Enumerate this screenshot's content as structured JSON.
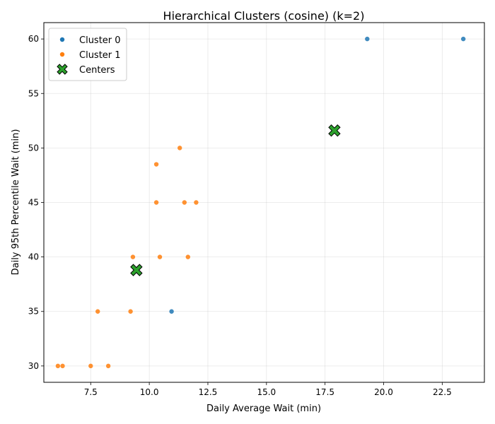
{
  "chart_data": {
    "type": "scatter",
    "title": "Hierarchical Clusters (cosine) (k=2)",
    "xlabel": "Daily Average Wait (min)",
    "ylabel": "Daily 95th Percentile Wait (min)",
    "xlim": [
      5.5,
      24.3
    ],
    "ylim": [
      28.5,
      61.5
    ],
    "xticks": [
      7.5,
      10.0,
      12.5,
      15.0,
      17.5,
      20.0,
      22.5
    ],
    "xtick_labels": [
      "7.5",
      "10.0",
      "12.5",
      "15.0",
      "17.5",
      "20.0",
      "22.5"
    ],
    "yticks": [
      30,
      35,
      40,
      45,
      50,
      55,
      60
    ],
    "ytick_labels": [
      "30",
      "35",
      "40",
      "45",
      "50",
      "55",
      "60"
    ],
    "grid": true,
    "legend_position": "top-left",
    "series": [
      {
        "name": "Cluster 0",
        "color": "#1f77b4",
        "points": [
          {
            "x": 19.3,
            "y": 60
          },
          {
            "x": 23.4,
            "y": 60
          },
          {
            "x": 10.95,
            "y": 35
          }
        ]
      },
      {
        "name": "Cluster 1",
        "color": "#ff7f0e",
        "points": [
          {
            "x": 11.3,
            "y": 50
          },
          {
            "x": 10.3,
            "y": 48.5
          },
          {
            "x": 10.3,
            "y": 45
          },
          {
            "x": 11.5,
            "y": 45
          },
          {
            "x": 12.0,
            "y": 45
          },
          {
            "x": 9.3,
            "y": 40
          },
          {
            "x": 10.45,
            "y": 40
          },
          {
            "x": 11.65,
            "y": 40
          },
          {
            "x": 7.8,
            "y": 35
          },
          {
            "x": 9.2,
            "y": 35
          },
          {
            "x": 6.1,
            "y": 30
          },
          {
            "x": 6.3,
            "y": 30
          },
          {
            "x": 7.5,
            "y": 30
          },
          {
            "x": 8.25,
            "y": 30
          }
        ]
      }
    ],
    "centers": {
      "name": "Centers",
      "color": "#2ca02c",
      "points": [
        {
          "x": 17.9,
          "y": 51.6
        },
        {
          "x": 9.45,
          "y": 38.8
        }
      ]
    }
  }
}
